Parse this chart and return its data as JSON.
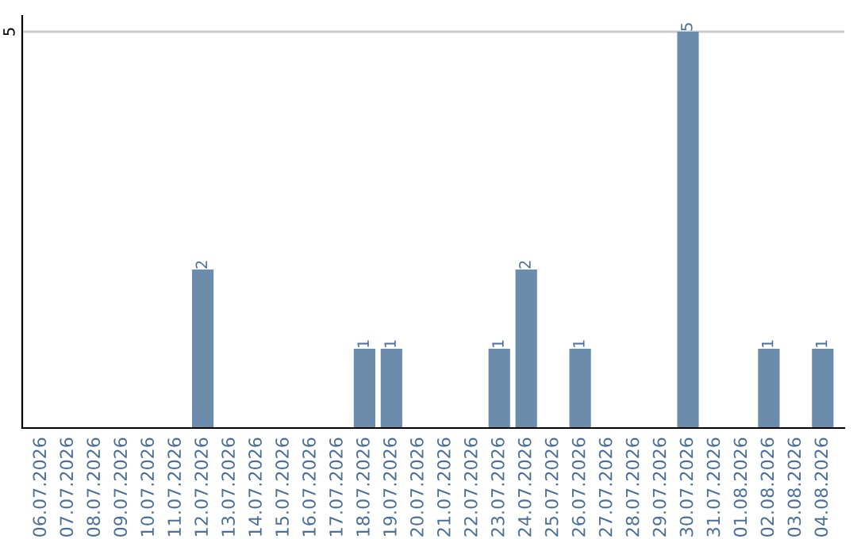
{
  "chart_data": {
    "type": "bar",
    "categories": [
      "06.07.2026",
      "07.07.2026",
      "08.07.2026",
      "09.07.2026",
      "10.07.2026",
      "11.07.2026",
      "12.07.2026",
      "13.07.2026",
      "14.07.2026",
      "15.07.2026",
      "16.07.2026",
      "17.07.2026",
      "18.07.2026",
      "19.07.2026",
      "20.07.2026",
      "21.07.2026",
      "22.07.2026",
      "23.07.2026",
      "24.07.2026",
      "25.07.2026",
      "26.07.2026",
      "27.07.2026",
      "28.07.2026",
      "29.07.2026",
      "30.07.2026",
      "31.07.2026",
      "01.08.2026",
      "02.08.2026",
      "03.08.2026",
      "04.08.2026"
    ],
    "values": [
      0,
      0,
      0,
      0,
      0,
      0,
      2,
      0,
      0,
      0,
      0,
      0,
      1,
      1,
      0,
      0,
      0,
      1,
      2,
      0,
      1,
      0,
      0,
      0,
      5,
      0,
      0,
      1,
      0,
      1
    ],
    "value_labels": [
      null,
      null,
      null,
      null,
      null,
      null,
      "2",
      null,
      null,
      null,
      null,
      null,
      "1",
      "1",
      null,
      null,
      null,
      "1",
      "2",
      null,
      "1",
      null,
      null,
      null,
      "5",
      null,
      null,
      "1",
      null,
      "1"
    ],
    "color": "#6b8cab",
    "ylim": [
      0,
      5.2
    ],
    "yticks": [
      5
    ],
    "grid": "y"
  }
}
